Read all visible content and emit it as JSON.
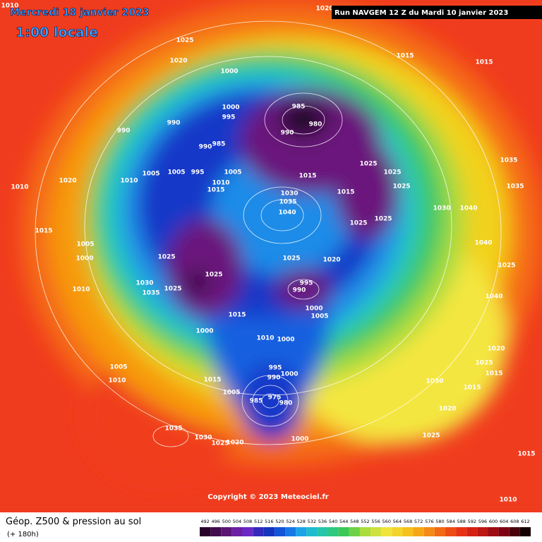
{
  "header": {
    "date": "Mercredi 18 janvier 2023",
    "time": "1:00 locale",
    "run": "Run NAVGEM 12 Z du Mardi 10 janvier 2023"
  },
  "map": {
    "copyright": "Copyright © 2023 Meteociel.fr",
    "isobar_labels": [
      1010,
      1020,
      1025,
      1020,
      1000,
      1015,
      1015,
      1000,
      995,
      985,
      980,
      990,
      990,
      990,
      985,
      990,
      1005,
      1005,
      995,
      1005,
      1010,
      1015,
      1020,
      1010,
      1010,
      1015,
      1025,
      1025,
      1025,
      1015,
      1030,
      1035,
      1040,
      1035,
      1035,
      1030,
      1040,
      1025,
      1025,
      1015,
      1005,
      1000,
      1025,
      1025,
      1020,
      1025,
      1025,
      1030,
      1035,
      995,
      990,
      1010,
      1000,
      1005,
      1015,
      1000,
      1010,
      1000,
      1005,
      1010,
      995,
      990,
      1000,
      1015,
      1005,
      975,
      985,
      980,
      1035,
      1030,
      1025,
      1020,
      1000,
      1020,
      1025,
      1015,
      1010,
      1030,
      1015,
      1025,
      1015,
      1020,
      1040,
      1025,
      1040
    ]
  },
  "legend": {
    "title": "Géop. Z500 & pression au sol",
    "subtitle": "(+ 180h)",
    "colorbar_ticks": [
      492,
      496,
      500,
      504,
      508,
      512,
      516,
      520,
      524,
      528,
      532,
      536,
      540,
      544,
      548,
      552,
      556,
      560,
      564,
      568,
      572,
      576,
      580,
      584,
      588,
      592,
      596,
      600,
      604,
      608,
      612
    ]
  }
}
